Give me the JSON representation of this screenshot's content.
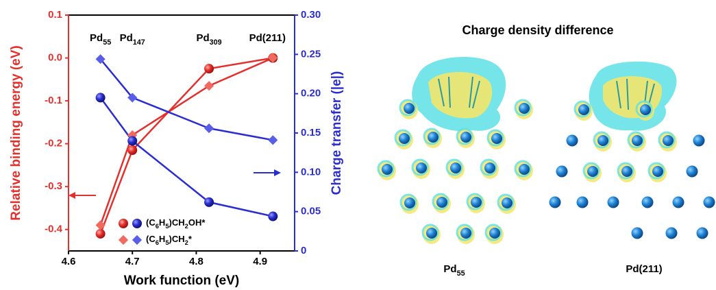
{
  "chart_data": {
    "type": "line",
    "xlabel": "Work function (eV)",
    "ylabel": "Relative binding energy (eV)",
    "y2label": "Charge transfer (|e|)",
    "x": [
      4.65,
      4.7,
      4.82,
      4.92
    ],
    "annotations": [
      "Pd55",
      "Pd147",
      "Pd309",
      "Pd(211)"
    ],
    "series": [
      {
        "name": "(C6H5)CH2OH*",
        "color": "#e4302c",
        "marker": "circle",
        "values": [
          -0.41,
          -0.215,
          -0.025,
          0.0
        ]
      },
      {
        "name": "(C6H5)CH2*",
        "color": "#f06a60",
        "marker": "diamond",
        "values": [
          -0.39,
          -0.18,
          -0.065,
          0.0
        ]
      },
      {
        "color": "#2a2ed0",
        "marker": "circle",
        "axis": "y2",
        "values": [
          0.195,
          0.14,
          0.062,
          0.044
        ]
      },
      {
        "color": "#5a5ee6",
        "marker": "diamond",
        "axis": "y2",
        "values": [
          0.244,
          0.195,
          0.156,
          0.141
        ]
      }
    ],
    "xlim": [
      4.6,
      4.954
    ],
    "xticks": [
      4.6,
      4.7,
      4.8,
      4.9
    ],
    "ylim": [
      -0.45,
      0.1
    ],
    "yticks": [
      0.1,
      {
        "value": 0,
        "label": "0.0"
      },
      -0.1,
      -0.2,
      -0.3,
      -0.4
    ],
    "y2lim": [
      0,
      0.3
    ],
    "y2ticks": [
      0,
      0.05,
      {
        "value": 0.1,
        "label": "0.10"
      },
      0.15,
      {
        "value": 0.2,
        "label": "0.20"
      },
      0.25,
      {
        "value": 0.3,
        "label": "0.30"
      }
    ],
    "left_color": "#e4302c",
    "right_color": "#2a2ed0"
  },
  "figure": {
    "title": "Charge density difference",
    "labels": [
      "Pd55",
      "Pd(211)"
    ]
  }
}
